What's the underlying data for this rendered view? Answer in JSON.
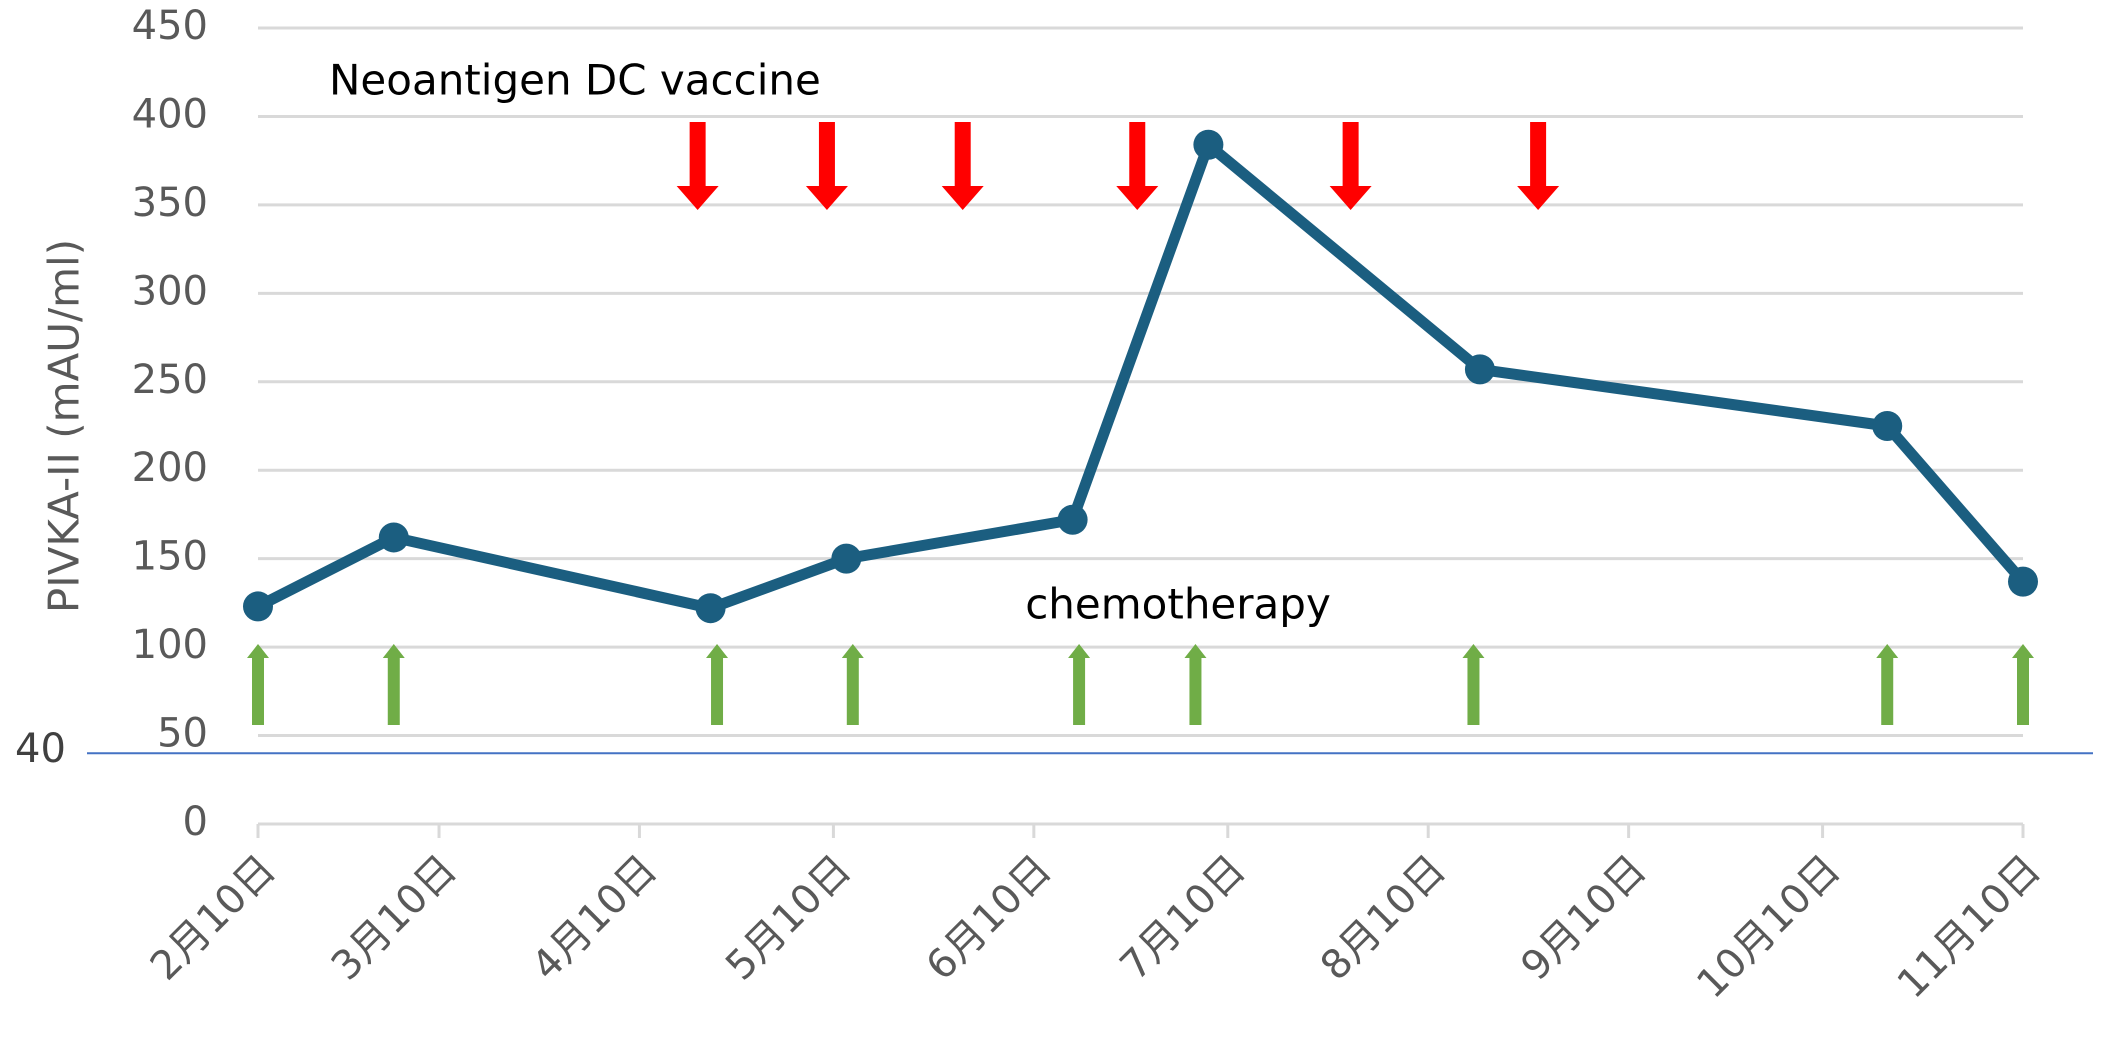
{
  "chart_data": {
    "type": "line",
    "y_label": "PIVKA-II (mAU/ml)",
    "x": [
      "2月10日",
      "3月3日",
      "4月21日",
      "5月12日",
      "6月16日",
      "7月7日",
      "8月18日",
      "10月20日",
      "11月10日"
    ],
    "series": [
      {
        "name": "PIVKA-II",
        "color": "#1b5e80",
        "values": [
          123,
          162,
          122,
          150,
          172,
          384,
          257,
          225,
          137
        ]
      }
    ],
    "xlim": [
      "2月10日",
      "11月10日"
    ],
    "xticks": [
      "2月10日",
      "3月10日",
      "4月10日",
      "5月10日",
      "6月10日",
      "7月10日",
      "8月10日",
      "9月10日",
      "10月10日",
      "11月10日"
    ],
    "ylim": [
      0,
      450
    ],
    "yticks": [
      0,
      50,
      100,
      150,
      200,
      250,
      300,
      350,
      400,
      450
    ],
    "grid": true,
    "reference_line": {
      "value": 40,
      "color": "#4472c4"
    },
    "annotations": [
      {
        "text": "Neoantigen DC vaccine",
        "color": "#ff0000",
        "direction": "down",
        "dates": [
          "4月19日",
          "5月9日",
          "5月30日",
          "6月26日",
          "7月29日",
          "8月27日"
        ]
      },
      {
        "text": "chemotherapy",
        "color": "#70ad47",
        "direction": "up",
        "dates": [
          "2月10日",
          "3月3日",
          "4月22日",
          "5月13日",
          "6月17日",
          "7月5日",
          "8月17日",
          "10月20日",
          "11月10日"
        ]
      }
    ]
  }
}
